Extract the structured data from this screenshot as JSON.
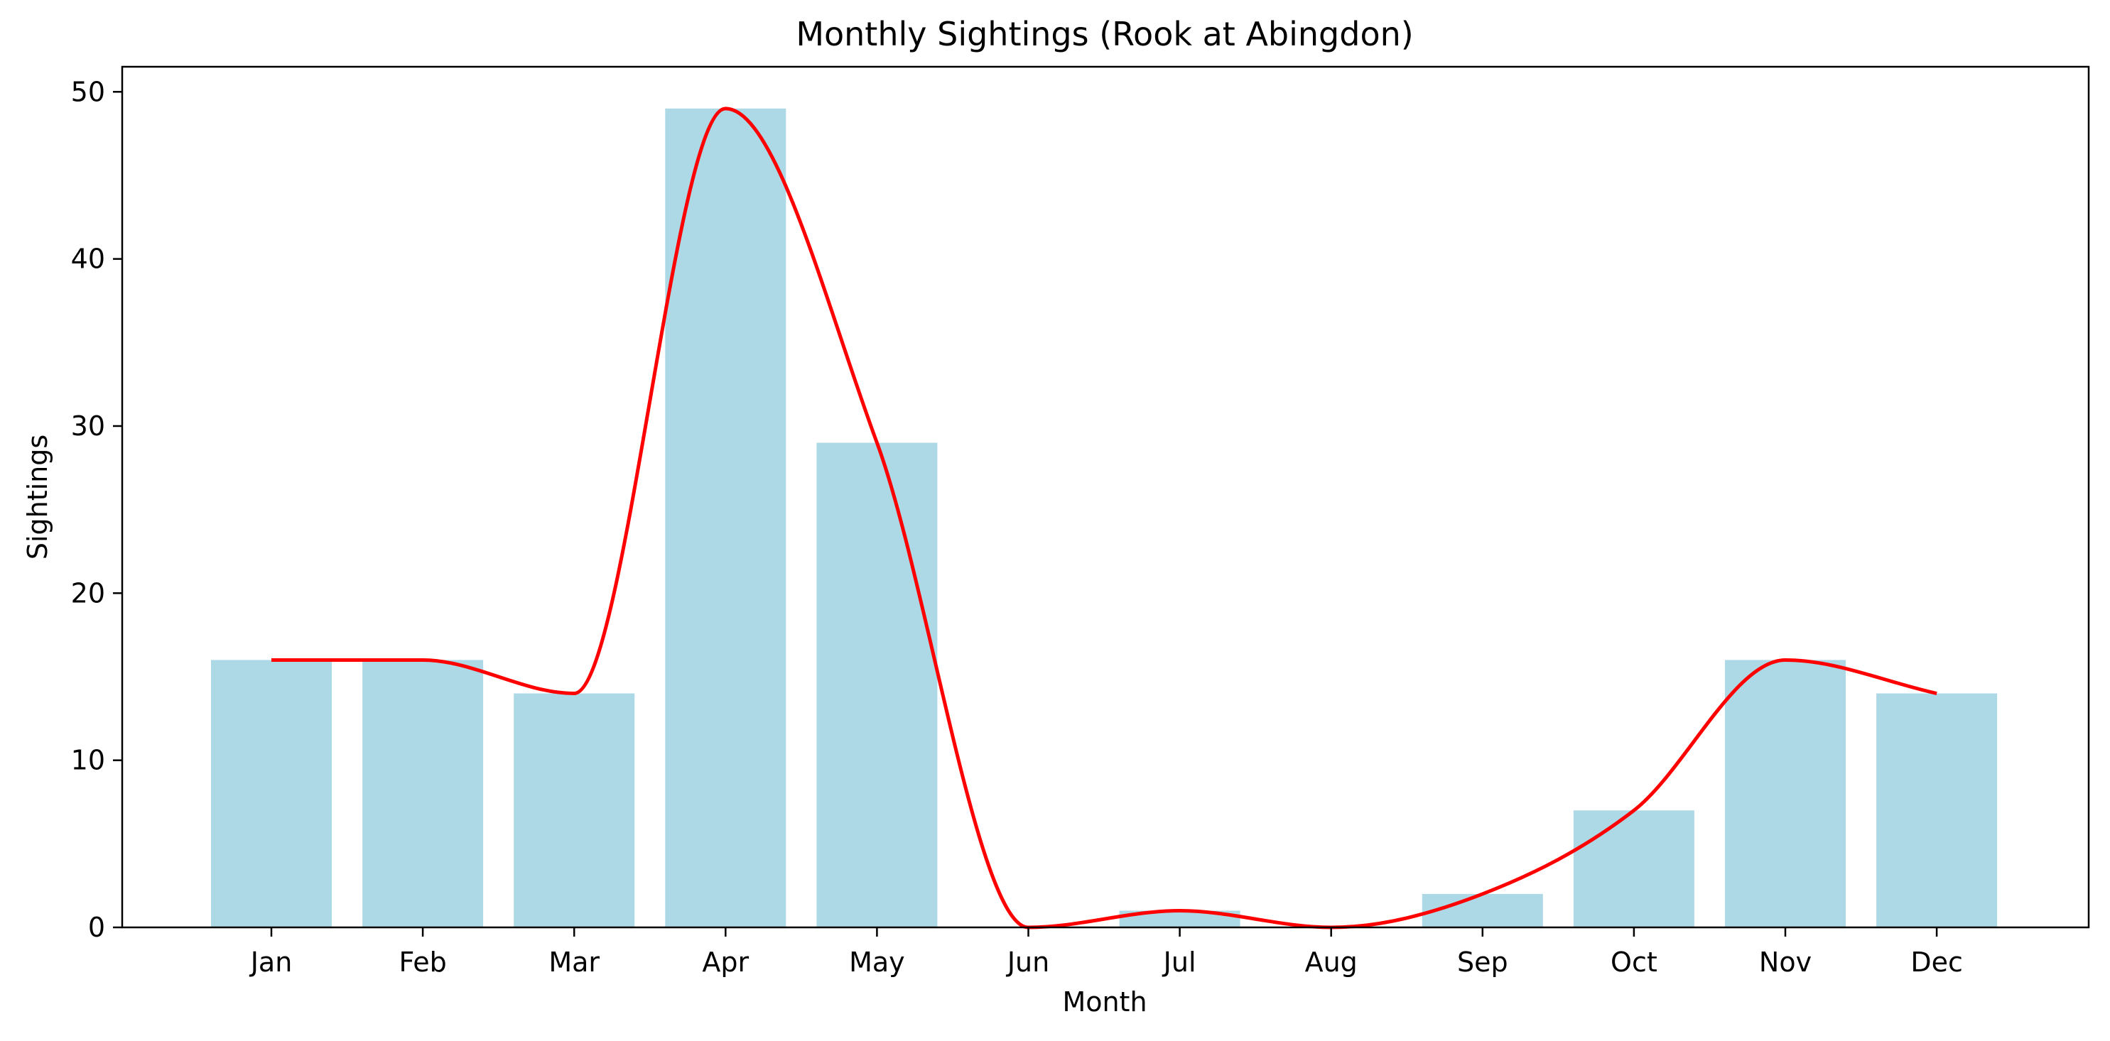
{
  "chart_data": {
    "type": "bar",
    "title": "Monthly Sightings (Rook at Abingdon)",
    "xlabel": "Month",
    "ylabel": "Sightings",
    "categories": [
      "Jan",
      "Feb",
      "Mar",
      "Apr",
      "May",
      "Jun",
      "Jul",
      "Aug",
      "Sep",
      "Oct",
      "Nov",
      "Dec"
    ],
    "values": [
      16,
      16,
      14,
      49,
      29,
      0,
      1,
      0,
      2,
      7,
      16,
      14
    ],
    "ylim": [
      0,
      51.5
    ],
    "yticks": [
      "0",
      "10",
      "20",
      "30",
      "40",
      "50"
    ],
    "grid": false,
    "legend": "none",
    "overlay": {
      "type": "line",
      "style": "smoothed",
      "values": [
        16,
        16,
        14,
        49,
        29,
        0,
        1,
        0,
        2,
        7,
        16,
        14
      ]
    },
    "colors": {
      "bar": "#add8e6",
      "line": "#ff0000",
      "axes": "#000000"
    }
  }
}
